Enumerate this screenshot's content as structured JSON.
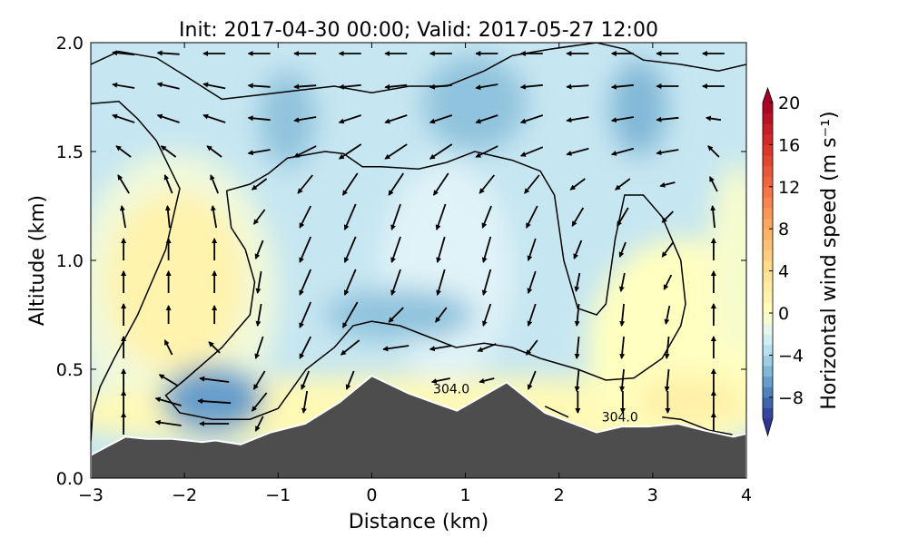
{
  "chart_data": {
    "type": "heatmap",
    "title": "Init: 2017-04-30 00:00; Valid: 2017-05-27 12:00",
    "xlabel": "Distance (km)",
    "ylabel": "Altitude (km)",
    "xlim": [
      -3,
      4
    ],
    "ylim": [
      0,
      2.0
    ],
    "xticks": [
      "−3",
      "−2",
      "−1",
      "0",
      "1",
      "2",
      "3",
      "4"
    ],
    "xtick_values": [
      -3,
      -2,
      -1,
      0,
      1,
      2,
      3,
      4
    ],
    "yticks": [
      "0.0",
      "0.5",
      "1.0",
      "1.5",
      "2.0"
    ],
    "ytick_values": [
      0,
      0.5,
      1.0,
      1.5,
      2.0
    ],
    "colorbar": {
      "label": "Horizontal wind speed (m s⁻¹)",
      "range": [
        -10,
        20
      ],
      "ticks": [
        "20",
        "16",
        "12",
        "8",
        "4",
        "0",
        "−4",
        "−8"
      ],
      "tick_values": [
        20,
        16,
        12,
        8,
        4,
        0,
        -4,
        -8
      ],
      "colormap": [
        "#313695",
        "#4575b4",
        "#74add1",
        "#abd9e9",
        "#e0f3f8",
        "#ffffbf",
        "#fee090",
        "#fdae61",
        "#f46d43",
        "#d73027",
        "#a50026"
      ],
      "extend": "both"
    },
    "background_value": -3,
    "field_blobs": [
      {
        "x": -2.1,
        "y": 0.85,
        "rx": 1.1,
        "ry": 0.65,
        "value": -1
      },
      {
        "x": -2.1,
        "y": 0.9,
        "rx": 0.75,
        "ry": 0.42,
        "value": 1.5
      },
      {
        "x": 0.5,
        "y": 0.3,
        "rx": 4.0,
        "ry": 0.17,
        "value": 0.8
      },
      {
        "x": 3.3,
        "y": 0.6,
        "rx": 1.0,
        "ry": 0.5,
        "value": 0
      },
      {
        "x": 3.4,
        "y": 0.35,
        "rx": 0.6,
        "ry": 0.12,
        "value": 2
      },
      {
        "x": 3.9,
        "y": 1.0,
        "rx": 0.3,
        "ry": 0.45,
        "value": -0.5
      },
      {
        "x": 0.8,
        "y": 0.95,
        "rx": 0.7,
        "ry": 0.5,
        "value": -2
      },
      {
        "x": -1.7,
        "y": 0.36,
        "rx": 0.55,
        "ry": 0.16,
        "value": -6.5
      },
      {
        "x": 0.3,
        "y": 0.75,
        "rx": 0.8,
        "ry": 0.12,
        "value": -5
      },
      {
        "x": -0.9,
        "y": 1.65,
        "rx": 0.3,
        "ry": 0.22,
        "value": -5
      },
      {
        "x": 1.1,
        "y": 1.72,
        "rx": 0.55,
        "ry": 0.22,
        "value": -5
      },
      {
        "x": 2.85,
        "y": 1.7,
        "rx": 0.3,
        "ry": 0.22,
        "value": -5.5
      }
    ],
    "terrain": [
      [
        -3,
        0.106
      ],
      [
        -2.63,
        0.19
      ],
      [
        -2.4,
        0.18
      ],
      [
        -2.13,
        0.18
      ],
      [
        -1.81,
        0.166
      ],
      [
        -1.67,
        0.173
      ],
      [
        -1.4,
        0.155
      ],
      [
        -1.08,
        0.21
      ],
      [
        -0.71,
        0.25
      ],
      [
        -0.34,
        0.35
      ],
      [
        0,
        0.47
      ],
      [
        0.39,
        0.39
      ],
      [
        0.71,
        0.34
      ],
      [
        0.91,
        0.31
      ],
      [
        1.44,
        0.44
      ],
      [
        1.85,
        0.3
      ],
      [
        2.4,
        0.21
      ],
      [
        2.67,
        0.237
      ],
      [
        2.95,
        0.237
      ],
      [
        3.27,
        0.25
      ],
      [
        3.54,
        0.22
      ],
      [
        3.86,
        0.19
      ],
      [
        4,
        0.204
      ]
    ],
    "contours": [
      {
        "level": "",
        "points": [
          [
            -3,
            1.9
          ],
          [
            -2.7,
            1.96
          ],
          [
            -2.3,
            1.93
          ],
          [
            -2,
            1.85
          ],
          [
            -1.6,
            1.74
          ],
          [
            -1.2,
            1.76
          ],
          [
            -0.8,
            1.78
          ],
          [
            -0.4,
            1.8
          ],
          [
            0,
            1.77
          ],
          [
            0.4,
            1.8
          ],
          [
            0.8,
            1.8
          ],
          [
            1.2,
            1.87
          ],
          [
            1.5,
            1.94
          ],
          [
            1.9,
            1.97
          ],
          [
            2.4,
            2.0
          ],
          [
            2.7,
            1.97
          ],
          [
            2.9,
            1.92
          ],
          [
            3.3,
            1.9
          ],
          [
            3.7,
            1.87
          ],
          [
            4,
            1.9
          ]
        ]
      },
      {
        "level": "",
        "points": [
          [
            -3,
            1.72
          ],
          [
            -2.7,
            1.73
          ],
          [
            -2.5,
            1.65
          ],
          [
            -2.3,
            1.55
          ],
          [
            -2.05,
            1.33
          ],
          [
            -2.2,
            1.05
          ],
          [
            -2.5,
            0.75
          ],
          [
            -2.75,
            0.55
          ],
          [
            -2.9,
            0.42
          ],
          [
            -2.98,
            0.3
          ],
          [
            -3,
            0.17
          ]
        ]
      },
      {
        "level": "",
        "points": [
          [
            -1.55,
            1.32
          ],
          [
            -1.3,
            1.35
          ],
          [
            -1.1,
            1.4
          ],
          [
            -0.9,
            1.47
          ],
          [
            -0.5,
            1.5
          ],
          [
            -0.3,
            1.49
          ],
          [
            -0.1,
            1.43
          ],
          [
            0.1,
            1.43
          ],
          [
            0.5,
            1.42
          ],
          [
            0.8,
            1.45
          ],
          [
            1.1,
            1.5
          ],
          [
            1.5,
            1.46
          ],
          [
            1.8,
            1.41
          ],
          [
            1.95,
            1.3
          ],
          [
            2.05,
            1.0
          ],
          [
            2.2,
            0.78
          ],
          [
            2.4,
            0.75
          ],
          [
            2.5,
            0.8
          ],
          [
            2.6,
            1.1
          ],
          [
            2.7,
            1.3
          ],
          [
            2.9,
            1.3
          ],
          [
            3.1,
            1.2
          ],
          [
            3.3,
            1.0
          ],
          [
            3.35,
            0.8
          ],
          [
            3.3,
            0.7
          ],
          [
            3.1,
            0.55
          ],
          [
            2.8,
            0.46
          ],
          [
            2.5,
            0.45
          ],
          [
            2.2,
            0.5
          ],
          [
            1.8,
            0.55
          ],
          [
            1.5,
            0.6
          ],
          [
            1.2,
            0.62
          ],
          [
            0.9,
            0.6
          ],
          [
            0.6,
            0.65
          ],
          [
            0.3,
            0.7
          ],
          [
            0,
            0.72
          ],
          [
            -0.2,
            0.7
          ],
          [
            -0.4,
            0.6
          ],
          [
            -0.7,
            0.5
          ],
          [
            -1.0,
            0.32
          ],
          [
            -1.3,
            0.27
          ],
          [
            -1.7,
            0.27
          ],
          [
            -2.05,
            0.3
          ],
          [
            -2.2,
            0.38
          ],
          [
            -2.0,
            0.45
          ],
          [
            -1.6,
            0.6
          ],
          [
            -1.3,
            0.75
          ],
          [
            -1.25,
            0.9
          ],
          [
            -1.35,
            1.05
          ],
          [
            -1.5,
            1.15
          ],
          [
            -1.55,
            1.32
          ]
        ]
      },
      {
        "level": "",
        "points": [
          [
            -0.55,
            0.28
          ],
          [
            -0.25,
            0.38
          ]
        ]
      },
      {
        "level": "",
        "points": [
          [
            1.85,
            0.33
          ],
          [
            2.1,
            0.28
          ]
        ]
      },
      {
        "level": "",
        "points": [
          [
            3.1,
            0.28
          ],
          [
            3.3,
            0.27
          ],
          [
            3.6,
            0.22
          ],
          [
            3.85,
            0.2
          ]
        ]
      }
    ],
    "contour_labels": [
      {
        "text": "304.0",
        "x": 0.85,
        "y": 0.39
      },
      {
        "text": "304.0",
        "x": 2.65,
        "y": 0.26
      }
    ],
    "quiver": {
      "x": [
        -2.65,
        -2.17,
        -1.68,
        -1.2,
        -0.71,
        -0.23,
        0.26,
        0.74,
        1.23,
        1.71,
        2.2,
        2.68,
        3.16,
        3.65
      ],
      "y": [
        1.95,
        1.8,
        1.65,
        1.5,
        1.35,
        1.2,
        1.05,
        0.9,
        0.75,
        0.6,
        0.45,
        0.35,
        0.25
      ],
      "u": [
        [
          -3,
          -3,
          -3,
          -3,
          -3,
          -3,
          -3,
          -3,
          -3,
          -3,
          -3,
          -3,
          -3,
          -3
        ],
        [
          -3,
          -3,
          -3,
          -3,
          -3,
          -3,
          -3,
          -3,
          -3,
          -3,
          -3,
          -3,
          -3,
          -3
        ],
        [
          -3,
          -3,
          -3,
          -3,
          -3,
          -3,
          -3,
          -3,
          -3,
          -3,
          -3,
          -3,
          -3,
          -2
        ],
        [
          -2,
          -2,
          -2,
          -3,
          -3,
          -3,
          -3,
          -3,
          -3,
          -3,
          -3,
          -3,
          -3,
          -1.5
        ],
        [
          -1.5,
          -1,
          -1,
          -2,
          -2,
          -2,
          -2,
          -2,
          -2,
          -2,
          -2,
          -2,
          -2,
          -1
        ],
        [
          -0.5,
          -0.3,
          -0.5,
          -1.5,
          -1.5,
          -1.5,
          -1.2,
          -1.2,
          -1.2,
          -1.5,
          -1.5,
          -1.5,
          -1.5,
          -0.3
        ],
        [
          0,
          0,
          0,
          -1,
          -1.5,
          -1.5,
          -1.2,
          -1,
          -1,
          -1,
          -1,
          -0.8,
          -1.5,
          0
        ],
        [
          0,
          0,
          0,
          -0.5,
          -1.5,
          -1.5,
          -1.2,
          -1,
          -1,
          -1,
          -0.5,
          -0.5,
          -1,
          0
        ],
        [
          0,
          0,
          0,
          -0.5,
          -1.5,
          -2,
          -2,
          -1.5,
          -1,
          -1,
          -0.3,
          -0.3,
          -0.5,
          0
        ],
        [
          0,
          -1,
          -1.5,
          -1,
          -1.5,
          -2.5,
          -3.5,
          -3,
          -2.5,
          -1.5,
          -0.3,
          -0.3,
          -0.3,
          0
        ],
        [
          0,
          -2.5,
          -4,
          -1.5,
          -1,
          -1,
          -3,
          -2.5,
          -2,
          -1,
          -0.3,
          -0.3,
          -0.3,
          0
        ],
        [
          0,
          -3.5,
          -4.5,
          -2,
          -0.5,
          -0.3,
          0,
          -1,
          -0.5,
          -0.3,
          0,
          0,
          0,
          0
        ],
        [
          0,
          -3.5,
          -4,
          -1,
          0,
          0,
          0,
          0,
          0,
          0,
          0,
          0,
          0,
          0
        ]
      ],
      "w": [
        [
          0.3,
          0.2,
          0,
          0,
          0,
          0,
          0,
          0,
          0,
          0,
          0,
          0,
          0,
          0
        ],
        [
          0.5,
          0.7,
          0.6,
          0.2,
          -0.2,
          -0.3,
          -0.3,
          -0.3,
          -0.5,
          -0.3,
          -0.2,
          -0.3,
          0,
          0
        ],
        [
          1,
          1,
          1,
          0.3,
          -0.5,
          -1,
          -1,
          -1,
          -1,
          -1,
          -0.5,
          -0.5,
          -0.3,
          0.3
        ],
        [
          1.5,
          1.5,
          1.5,
          -0.5,
          -1.5,
          -2,
          -2,
          -2,
          -1.5,
          -1.2,
          -0.8,
          -0.8,
          -0.5,
          1.5
        ],
        [
          2.5,
          2.5,
          2.5,
          -1.5,
          -2.5,
          -3,
          -3,
          -3,
          -2.5,
          -2.5,
          -1.5,
          -1.5,
          -0.5,
          2
        ],
        [
          3,
          3,
          3,
          -2,
          -3,
          -3.5,
          -3.5,
          -3.5,
          -3,
          -3,
          -2.5,
          -2.5,
          -1.5,
          3
        ],
        [
          3,
          3,
          3,
          -2.5,
          -3.5,
          -3.5,
          -3.5,
          -3.5,
          -3.5,
          -3,
          -2.5,
          -2,
          -2,
          3
        ],
        [
          3,
          3,
          3,
          -3,
          -3.5,
          -3.5,
          -3.5,
          -3.5,
          -3.5,
          -3,
          -2.5,
          -2.5,
          -2,
          3
        ],
        [
          3,
          2.5,
          2.5,
          -3,
          -3.5,
          -3.5,
          -2,
          -2,
          -3,
          -3,
          -3,
          -3,
          -2.5,
          3
        ],
        [
          3,
          2,
          1.5,
          -3,
          -3,
          -2,
          -0.5,
          -0.5,
          -1,
          -2,
          -3,
          -3,
          -3,
          3
        ],
        [
          3,
          1.5,
          0.5,
          -2.5,
          -2.5,
          -2.5,
          -0.5,
          -0.5,
          -0.5,
          -2.5,
          -3,
          -3,
          -3,
          3
        ],
        [
          3,
          1,
          0.3,
          -2.5,
          -3,
          -3,
          -3,
          -3,
          -3,
          -3,
          -3,
          -3,
          -3,
          3
        ],
        [
          3,
          0.5,
          0,
          -2,
          -3,
          -3,
          -3,
          -3,
          -3,
          -3,
          -3,
          -3,
          -3,
          3
        ]
      ]
    }
  }
}
